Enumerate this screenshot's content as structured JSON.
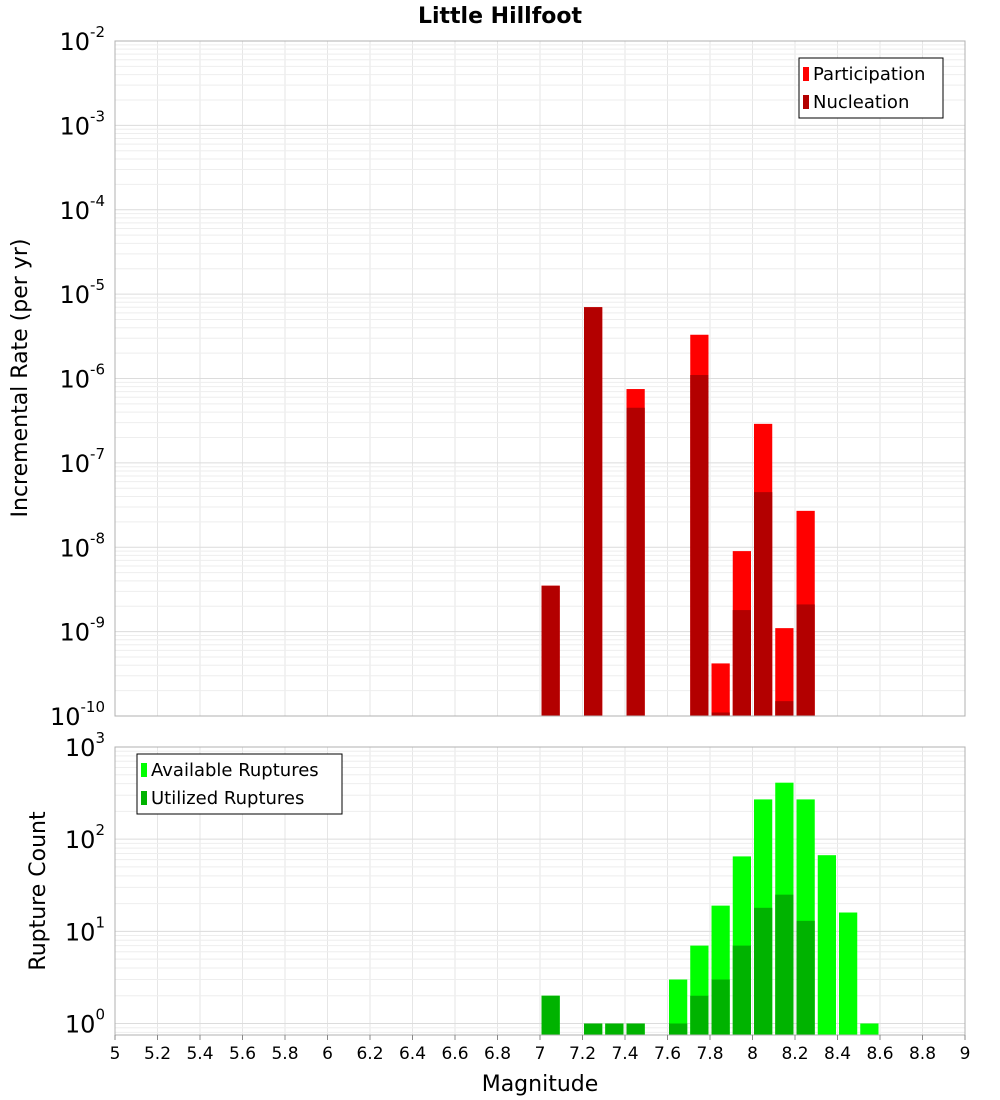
{
  "chart_data": [
    {
      "type": "bar",
      "title": "Little Hillfoot",
      "xlabel": "",
      "ylabel": "Incremental Rate (per yr)",
      "xlim": [
        5,
        9
      ],
      "ylim": [
        1e-10,
        0.01
      ],
      "yscale": "log",
      "grid": true,
      "legend_position": "top-right",
      "bin_width": 0.1,
      "series": [
        {
          "name": "Participation",
          "color": "#ff0000",
          "x": [
            7.05,
            7.25,
            7.45,
            7.75,
            7.85,
            7.95,
            8.05,
            8.15,
            8.25
          ],
          "values": [
            3.5e-09,
            7e-06,
            7.5e-07,
            3.3e-06,
            4.2e-10,
            9e-09,
            2.9e-07,
            1.1e-09,
            2.7e-08
          ]
        },
        {
          "name": "Nucleation",
          "color": "#b30000",
          "x": [
            7.05,
            7.25,
            7.45,
            7.75,
            7.85,
            7.95,
            8.05,
            8.15,
            8.25
          ],
          "values": [
            3.5e-09,
            7e-06,
            4.5e-07,
            1.1e-06,
            1.1e-10,
            1.8e-09,
            4.5e-08,
            1.5e-10,
            2.1e-09
          ]
        }
      ]
    },
    {
      "type": "bar",
      "title": "",
      "xlabel": "Magnitude",
      "ylabel": "Rupture Count",
      "xlim": [
        5,
        9
      ],
      "ylim": [
        0.75,
        1000
      ],
      "yscale": "log",
      "grid": true,
      "legend_position": "top-left",
      "bin_width": 0.1,
      "x_ticks": [
        "5",
        "5.2",
        "5.4",
        "5.6",
        "5.8",
        "6",
        "6.2",
        "6.4",
        "6.6",
        "6.8",
        "7",
        "7.2",
        "7.4",
        "7.6",
        "7.8",
        "8",
        "8.2",
        "8.4",
        "8.6",
        "8.8",
        "9"
      ],
      "series": [
        {
          "name": "Available Ruptures",
          "color": "#00ff00",
          "x": [
            7.05,
            7.25,
            7.35,
            7.45,
            7.65,
            7.75,
            7.85,
            7.95,
            8.05,
            8.15,
            8.25,
            8.35,
            8.45,
            8.55
          ],
          "values": [
            2,
            1,
            1,
            1,
            3,
            7,
            19,
            65,
            270,
            410,
            270,
            67,
            16,
            1
          ]
        },
        {
          "name": "Utilized Ruptures",
          "color": "#00b300",
          "x": [
            7.05,
            7.25,
            7.35,
            7.45,
            7.65,
            7.75,
            7.85,
            7.95,
            8.05,
            8.15,
            8.25
          ],
          "values": [
            2,
            1,
            1,
            1,
            1,
            2,
            3,
            7,
            18,
            25,
            13
          ]
        }
      ]
    }
  ]
}
